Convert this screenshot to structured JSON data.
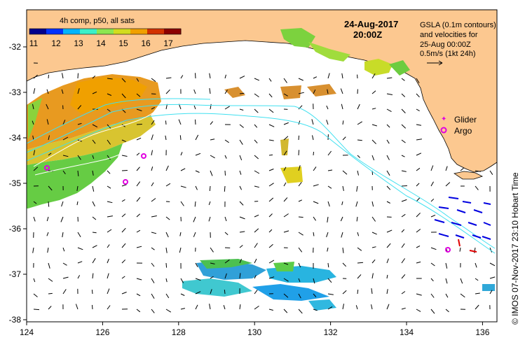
{
  "colorbar": {
    "title": "4h comp, p50, all sats",
    "ticks": [
      "11",
      "12",
      "13",
      "14",
      "15",
      "16",
      "17"
    ],
    "colors": [
      "#00008c",
      "#0032ff",
      "#00b4ff",
      "#3cf0c8",
      "#8ce650",
      "#d2dc1e",
      "#f0a000",
      "#d23200",
      "#8c0000"
    ]
  },
  "header": {
    "date": "24-Aug-2017",
    "time": "20:00Z"
  },
  "info": {
    "line1": "GSLA (0.1m contours)",
    "line2": "and velocities for",
    "line3": "25-Aug 00:00Z",
    "line4": "0.5m/s (1kt 24h)"
  },
  "legend": {
    "glider": "Glider",
    "argo": "Argo",
    "glider_color": "#e000e0",
    "argo_color": "#e000e0"
  },
  "credit": "© IMOS 07-Nov-2017 23:10 Hobart Time",
  "axes": {
    "lon_ticks": [
      "124",
      "126",
      "128",
      "130",
      "132",
      "134",
      "136"
    ],
    "lat_ticks": [
      "-32",
      "-33",
      "-34",
      "-35",
      "-36",
      "-37",
      "-38"
    ]
  },
  "colors": {
    "land": "#fcc890",
    "ocean": "#ffffff",
    "contour": "#40e0f0"
  }
}
